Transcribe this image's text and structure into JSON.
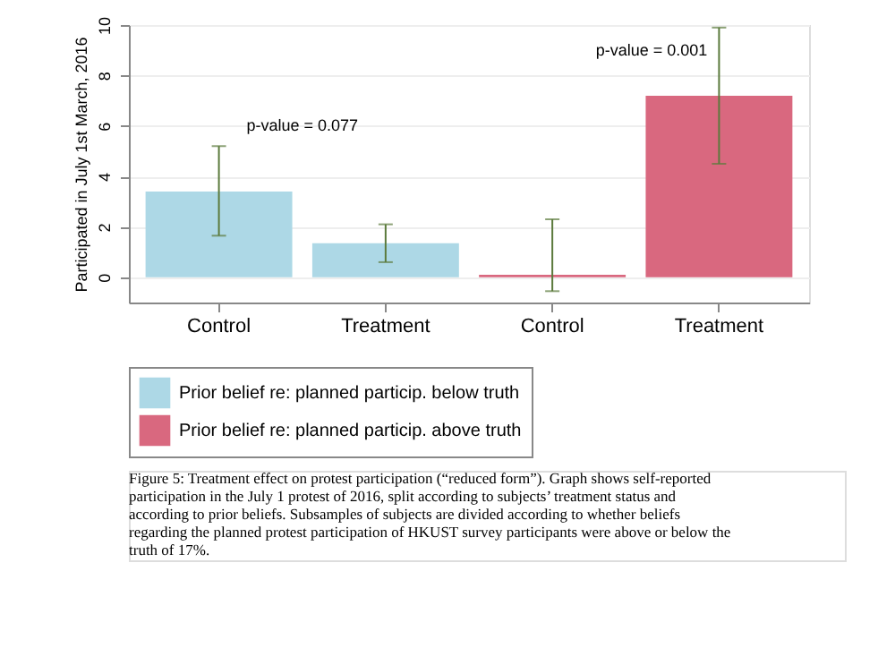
{
  "chart_data": {
    "type": "bar",
    "ylabel": "Participated in July 1st March, 2016",
    "categories": [
      "Control",
      "Treatment",
      "Control",
      "Treatment"
    ],
    "series": [
      {
        "name": "Prior belief re: planned particip. below truth",
        "color": "#add8e6",
        "values": [
          3.4,
          1.35,
          null,
          null
        ],
        "errors": [
          [
            1.65,
            5.2
          ],
          [
            0.6,
            2.1
          ],
          null,
          null
        ]
      },
      {
        "name": "Prior belief re: planned particip. above truth",
        "color": "#d9687f",
        "values": [
          null,
          null,
          0.1,
          7.2
        ],
        "errors": [
          null,
          null,
          [
            -0.55,
            2.3
          ],
          [
            4.5,
            9.9
          ]
        ]
      }
    ],
    "ylim": [
      -1,
      10
    ],
    "yticks": [
      0,
      2,
      4,
      6,
      8,
      10
    ],
    "grid": "y",
    "legend": "bottom",
    "annotations": [
      "p-value = 0.077",
      "p-value = 0.001",
      "Figure 5: Treatment effect on protest participation (“reduced form”). Graph shows self-reported participation in the July 1 protest of 2016, split according to subjects’ treatment status and according to prior beliefs. Subsamples of subjects are divided according to whether beliefs regarding the planned protest participation of HKUST survey participants were above or below the truth of 17%."
    ]
  }
}
